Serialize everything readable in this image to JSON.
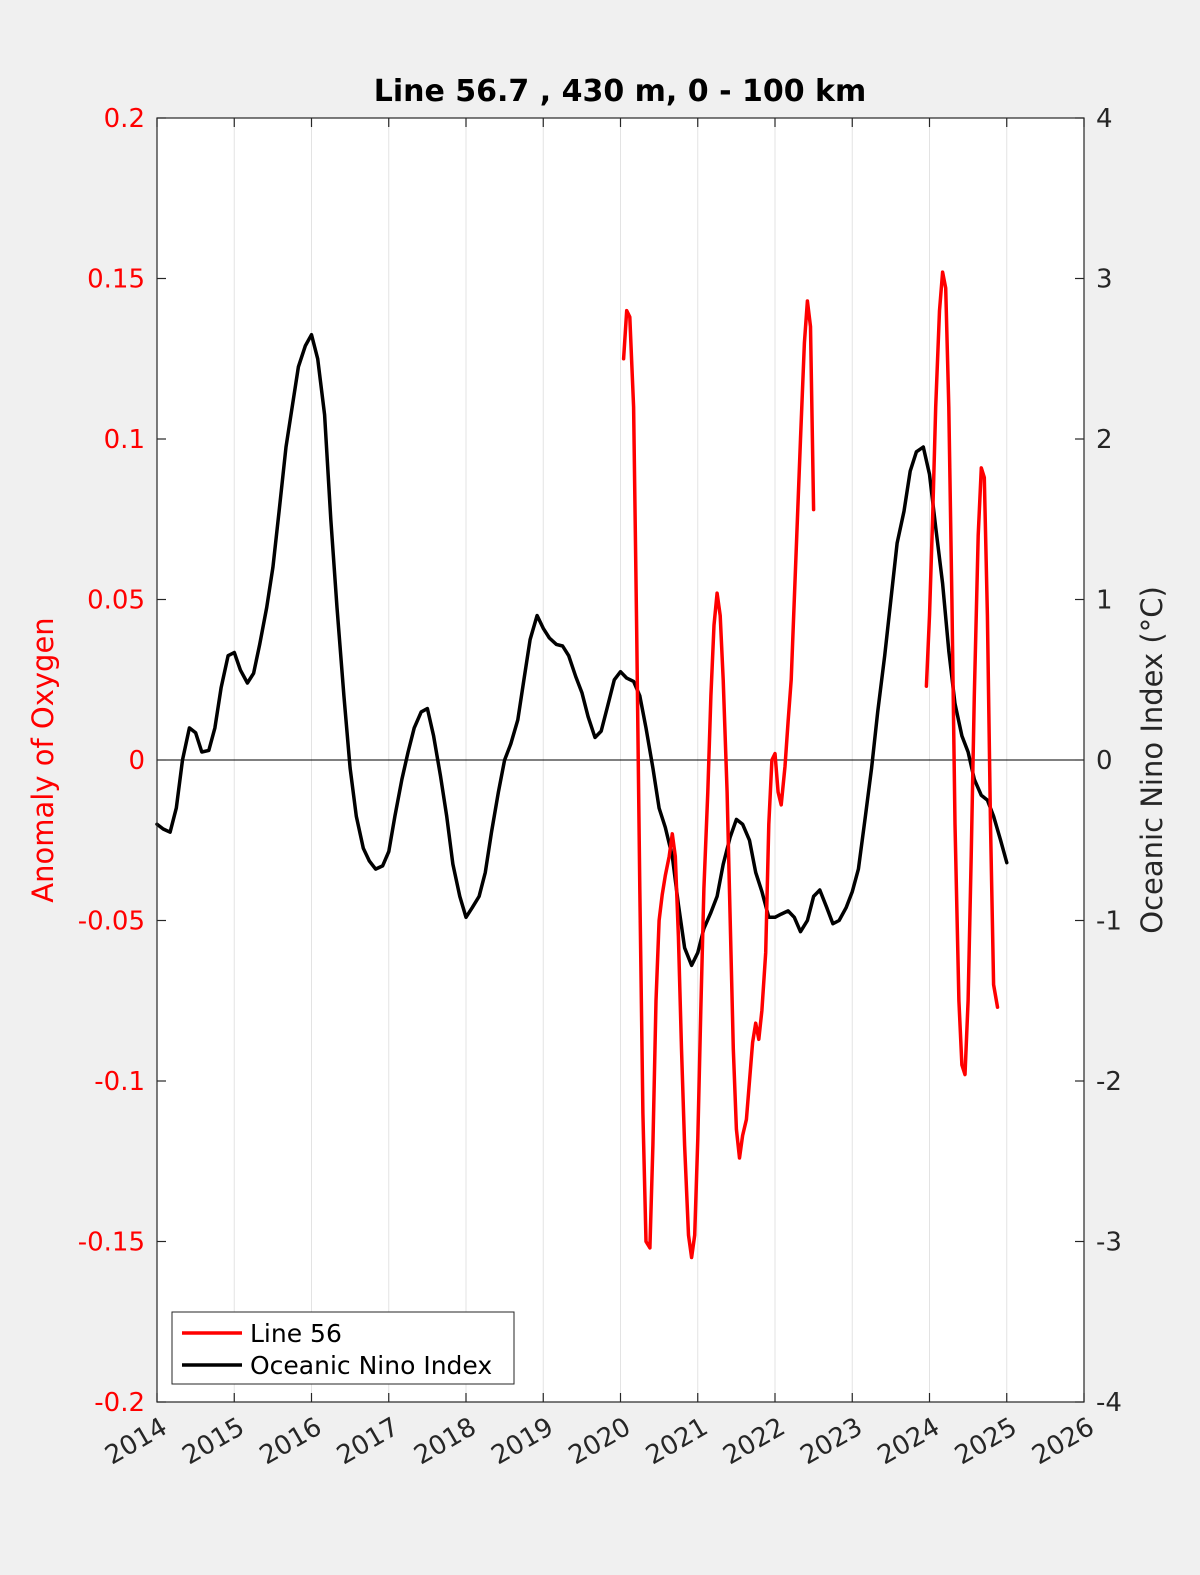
{
  "chart_data": {
    "type": "line",
    "title": "Line 56.7 , 430 m, 0 - 100 km",
    "xlim": [
      2014,
      2026
    ],
    "x_ticks": [
      "2014",
      "2015",
      "2016",
      "2017",
      "2018",
      "2019",
      "2020",
      "2021",
      "2022",
      "2023",
      "2024",
      "2025",
      "2026"
    ],
    "y_left": {
      "label": "Anomaly of Oxygen",
      "lim": [
        -0.2,
        0.2
      ],
      "ticks": [
        "0.2",
        "0.15",
        "0.1",
        "0.05",
        "0",
        "-0.05",
        "-0.1",
        "-0.15",
        "-0.2"
      ],
      "color": "#ff0000"
    },
    "y_right": {
      "label": "Oceanic Nino Index (°C)",
      "lim": [
        -4,
        4
      ],
      "ticks": [
        "4",
        "3",
        "2",
        "1",
        "0",
        "-1",
        "-2",
        "-3",
        "-4"
      ],
      "color": "#262626"
    },
    "grid": "vertical",
    "zero_line": true,
    "legend": {
      "position": "bottom-left",
      "entries": [
        "Line 56",
        "Oceanic Nino Index"
      ]
    },
    "series": [
      {
        "name": "Line 56",
        "axis": "left",
        "color": "#ff0000",
        "segments": [
          [
            [
              2020.04,
              0.125
            ],
            [
              2020.08,
              0.14
            ],
            [
              2020.12,
              0.138
            ],
            [
              2020.17,
              0.11
            ],
            [
              2020.21,
              0.04
            ],
            [
              2020.25,
              -0.04
            ],
            [
              2020.29,
              -0.11
            ],
            [
              2020.33,
              -0.15
            ],
            [
              2020.38,
              -0.152
            ],
            [
              2020.42,
              -0.12
            ],
            [
              2020.46,
              -0.075
            ],
            [
              2020.5,
              -0.05
            ],
            [
              2020.54,
              -0.042
            ],
            [
              2020.58,
              -0.036
            ],
            [
              2020.63,
              -0.03
            ],
            [
              2020.67,
              -0.023
            ],
            [
              2020.71,
              -0.03
            ],
            [
              2020.75,
              -0.055
            ],
            [
              2020.79,
              -0.09
            ],
            [
              2020.83,
              -0.12
            ],
            [
              2020.88,
              -0.148
            ],
            [
              2020.92,
              -0.155
            ],
            [
              2020.96,
              -0.148
            ],
            [
              2021.0,
              -0.118
            ],
            [
              2021.04,
              -0.078
            ],
            [
              2021.08,
              -0.04
            ],
            [
              2021.13,
              -0.01
            ],
            [
              2021.17,
              0.02
            ],
            [
              2021.21,
              0.042
            ],
            [
              2021.25,
              0.052
            ],
            [
              2021.29,
              0.045
            ],
            [
              2021.33,
              0.025
            ],
            [
              2021.38,
              -0.01
            ],
            [
              2021.42,
              -0.05
            ],
            [
              2021.46,
              -0.09
            ],
            [
              2021.5,
              -0.115
            ],
            [
              2021.54,
              -0.124
            ],
            [
              2021.58,
              -0.117
            ],
            [
              2021.63,
              -0.112
            ],
            [
              2021.67,
              -0.1
            ],
            [
              2021.71,
              -0.088
            ],
            [
              2021.75,
              -0.082
            ],
            [
              2021.79,
              -0.087
            ],
            [
              2021.83,
              -0.078
            ],
            [
              2021.88,
              -0.06
            ],
            [
              2021.92,
              -0.02
            ],
            [
              2021.96,
              0.0
            ],
            [
              2022.0,
              0.002
            ],
            [
              2022.04,
              -0.01
            ],
            [
              2022.08,
              -0.014
            ],
            [
              2022.13,
              -0.002
            ],
            [
              2022.17,
              0.012
            ],
            [
              2022.21,
              0.025
            ],
            [
              2022.25,
              0.05
            ],
            [
              2022.29,
              0.075
            ],
            [
              2022.33,
              0.1
            ],
            [
              2022.38,
              0.13
            ],
            [
              2022.42,
              0.143
            ],
            [
              2022.46,
              0.135
            ],
            [
              2022.5,
              0.078
            ]
          ],
          [
            [
              2023.96,
              0.023
            ],
            [
              2024.0,
              0.045
            ],
            [
              2024.04,
              0.075
            ],
            [
              2024.08,
              0.11
            ],
            [
              2024.13,
              0.14
            ],
            [
              2024.17,
              0.152
            ],
            [
              2024.21,
              0.147
            ],
            [
              2024.25,
              0.11
            ],
            [
              2024.29,
              0.05
            ],
            [
              2024.33,
              -0.02
            ],
            [
              2024.38,
              -0.075
            ],
            [
              2024.42,
              -0.095
            ],
            [
              2024.46,
              -0.098
            ],
            [
              2024.5,
              -0.075
            ],
            [
              2024.54,
              -0.03
            ],
            [
              2024.58,
              0.02
            ],
            [
              2024.63,
              0.07
            ],
            [
              2024.67,
              0.091
            ],
            [
              2024.71,
              0.088
            ],
            [
              2024.75,
              0.045
            ],
            [
              2024.79,
              -0.02
            ],
            [
              2024.83,
              -0.07
            ],
            [
              2024.88,
              -0.077
            ]
          ]
        ]
      },
      {
        "name": "Oceanic Nino Index",
        "axis": "right",
        "color": "#000000",
        "values": [
          [
            2014.0,
            -0.4
          ],
          [
            2014.08,
            -0.43
          ],
          [
            2014.17,
            -0.45
          ],
          [
            2014.25,
            -0.3
          ],
          [
            2014.33,
            0.0
          ],
          [
            2014.42,
            0.2
          ],
          [
            2014.5,
            0.17
          ],
          [
            2014.58,
            0.05
          ],
          [
            2014.67,
            0.06
          ],
          [
            2014.75,
            0.2
          ],
          [
            2014.83,
            0.45
          ],
          [
            2014.92,
            0.65
          ],
          [
            2015.0,
            0.67
          ],
          [
            2015.08,
            0.56
          ],
          [
            2015.17,
            0.48
          ],
          [
            2015.25,
            0.54
          ],
          [
            2015.33,
            0.72
          ],
          [
            2015.42,
            0.95
          ],
          [
            2015.5,
            1.2
          ],
          [
            2015.58,
            1.55
          ],
          [
            2015.67,
            1.95
          ],
          [
            2015.75,
            2.2
          ],
          [
            2015.83,
            2.45
          ],
          [
            2015.92,
            2.58
          ],
          [
            2016.0,
            2.65
          ],
          [
            2016.08,
            2.5
          ],
          [
            2016.17,
            2.15
          ],
          [
            2016.25,
            1.5
          ],
          [
            2016.33,
            0.95
          ],
          [
            2016.42,
            0.4
          ],
          [
            2016.5,
            -0.05
          ],
          [
            2016.58,
            -0.35
          ],
          [
            2016.67,
            -0.55
          ],
          [
            2016.75,
            -0.63
          ],
          [
            2016.83,
            -0.68
          ],
          [
            2016.92,
            -0.66
          ],
          [
            2017.0,
            -0.57
          ],
          [
            2017.08,
            -0.35
          ],
          [
            2017.17,
            -0.12
          ],
          [
            2017.25,
            0.05
          ],
          [
            2017.33,
            0.2
          ],
          [
            2017.42,
            0.3
          ],
          [
            2017.5,
            0.32
          ],
          [
            2017.58,
            0.15
          ],
          [
            2017.67,
            -0.1
          ],
          [
            2017.75,
            -0.35
          ],
          [
            2017.83,
            -0.65
          ],
          [
            2017.92,
            -0.85
          ],
          [
            2018.0,
            -0.98
          ],
          [
            2018.08,
            -0.92
          ],
          [
            2018.17,
            -0.85
          ],
          [
            2018.25,
            -0.7
          ],
          [
            2018.33,
            -0.45
          ],
          [
            2018.42,
            -0.2
          ],
          [
            2018.5,
            0.0
          ],
          [
            2018.58,
            0.1
          ],
          [
            2018.67,
            0.25
          ],
          [
            2018.75,
            0.5
          ],
          [
            2018.83,
            0.75
          ],
          [
            2018.92,
            0.9
          ],
          [
            2019.0,
            0.82
          ],
          [
            2019.08,
            0.76
          ],
          [
            2019.17,
            0.72
          ],
          [
            2019.25,
            0.71
          ],
          [
            2019.33,
            0.65
          ],
          [
            2019.42,
            0.52
          ],
          [
            2019.5,
            0.42
          ],
          [
            2019.58,
            0.27
          ],
          [
            2019.67,
            0.14
          ],
          [
            2019.75,
            0.18
          ],
          [
            2019.83,
            0.33
          ],
          [
            2019.92,
            0.5
          ],
          [
            2020.0,
            0.55
          ],
          [
            2020.08,
            0.51
          ],
          [
            2020.17,
            0.49
          ],
          [
            2020.25,
            0.4
          ],
          [
            2020.33,
            0.2
          ],
          [
            2020.42,
            -0.05
          ],
          [
            2020.5,
            -0.3
          ],
          [
            2020.58,
            -0.42
          ],
          [
            2020.67,
            -0.6
          ],
          [
            2020.75,
            -0.9
          ],
          [
            2020.83,
            -1.17
          ],
          [
            2020.92,
            -1.28
          ],
          [
            2021.0,
            -1.2
          ],
          [
            2021.08,
            -1.05
          ],
          [
            2021.17,
            -0.95
          ],
          [
            2021.25,
            -0.85
          ],
          [
            2021.33,
            -0.65
          ],
          [
            2021.42,
            -0.48
          ],
          [
            2021.5,
            -0.37
          ],
          [
            2021.58,
            -0.4
          ],
          [
            2021.67,
            -0.5
          ],
          [
            2021.75,
            -0.7
          ],
          [
            2021.83,
            -0.82
          ],
          [
            2021.92,
            -0.98
          ],
          [
            2022.0,
            -0.98
          ],
          [
            2022.08,
            -0.96
          ],
          [
            2022.17,
            -0.94
          ],
          [
            2022.25,
            -0.98
          ],
          [
            2022.33,
            -1.07
          ],
          [
            2022.42,
            -1.0
          ],
          [
            2022.5,
            -0.85
          ],
          [
            2022.58,
            -0.81
          ],
          [
            2022.67,
            -0.92
          ],
          [
            2022.75,
            -1.02
          ],
          [
            2022.83,
            -1.0
          ],
          [
            2022.92,
            -0.92
          ],
          [
            2023.0,
            -0.82
          ],
          [
            2023.08,
            -0.68
          ],
          [
            2023.17,
            -0.35
          ],
          [
            2023.25,
            -0.05
          ],
          [
            2023.33,
            0.3
          ],
          [
            2023.42,
            0.65
          ],
          [
            2023.5,
            1.0
          ],
          [
            2023.58,
            1.35
          ],
          [
            2023.67,
            1.55
          ],
          [
            2023.75,
            1.8
          ],
          [
            2023.83,
            1.92
          ],
          [
            2023.92,
            1.95
          ],
          [
            2024.0,
            1.78
          ],
          [
            2024.08,
            1.45
          ],
          [
            2024.17,
            1.1
          ],
          [
            2024.25,
            0.68
          ],
          [
            2024.33,
            0.35
          ],
          [
            2024.42,
            0.15
          ],
          [
            2024.5,
            0.05
          ],
          [
            2024.58,
            -0.12
          ],
          [
            2024.67,
            -0.22
          ],
          [
            2024.75,
            -0.25
          ],
          [
            2024.83,
            -0.35
          ],
          [
            2024.92,
            -0.5
          ],
          [
            2025.0,
            -0.64
          ]
        ]
      }
    ]
  }
}
